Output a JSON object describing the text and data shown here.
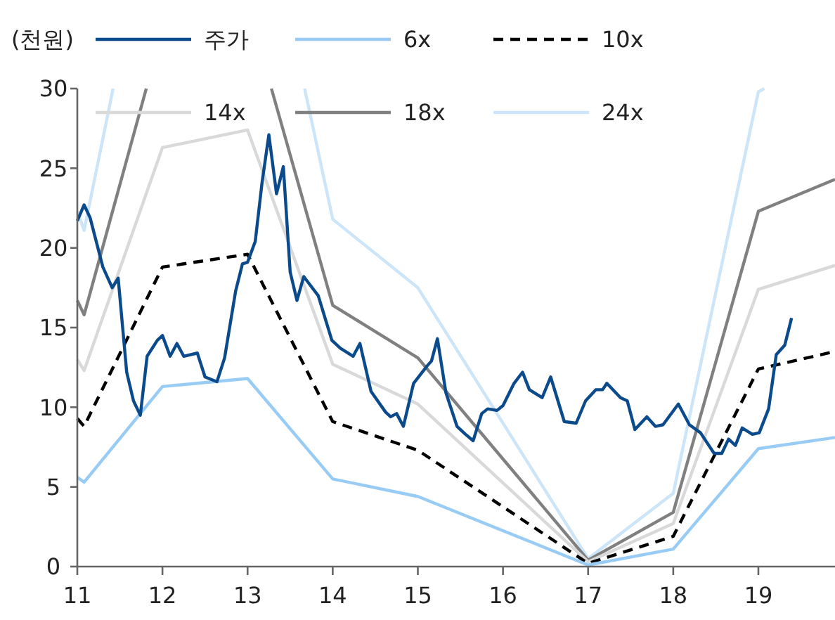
{
  "chart_data": {
    "type": "line",
    "ylabel": "(천원)",
    "xlim": [
      11,
      19.9
    ],
    "xticks": [
      11,
      12,
      13,
      14,
      15,
      16,
      17,
      18,
      19
    ],
    "ylim": [
      0,
      30
    ],
    "yticks": [
      0,
      5,
      10,
      15,
      20,
      25,
      30
    ],
    "grid": false,
    "legend": "top",
    "marker": "none",
    "series": [
      {
        "name": "주가",
        "color": "#0b4a8b",
        "x": [
          11.0,
          11.08,
          11.15,
          11.3,
          11.41,
          11.48,
          11.58,
          11.66,
          11.74,
          11.82,
          11.94,
          12.0,
          12.09,
          12.17,
          12.25,
          12.41,
          12.5,
          12.64,
          12.73,
          12.86,
          12.94,
          13.0,
          13.09,
          13.17,
          13.25,
          13.34,
          13.42,
          13.5,
          13.58,
          13.66,
          13.83,
          13.99,
          14.09,
          14.24,
          14.32,
          14.45,
          14.62,
          14.68,
          14.75,
          14.83,
          14.95,
          15.11,
          15.16,
          15.23,
          15.33,
          15.46,
          15.56,
          15.65,
          15.75,
          15.82,
          15.93,
          16.0,
          16.13,
          16.23,
          16.31,
          16.46,
          16.56,
          16.72,
          16.86,
          16.97,
          17.09,
          17.17,
          17.22,
          17.38,
          17.46,
          17.55,
          17.69,
          17.79,
          17.88,
          18.06,
          18.19,
          18.32,
          18.48,
          18.57,
          18.65,
          18.73,
          18.81,
          18.93,
          19.01,
          19.12,
          19.21,
          19.31,
          19.39
        ],
        "values": [
          21.7,
          22.7,
          21.9,
          18.8,
          17.5,
          18.1,
          12.2,
          10.4,
          9.5,
          13.2,
          14.2,
          14.5,
          13.2,
          14.0,
          13.2,
          13.4,
          11.9,
          11.6,
          13.1,
          17.3,
          19.0,
          19.1,
          20.4,
          24.1,
          27.1,
          23.4,
          25.1,
          18.5,
          16.7,
          18.2,
          17.0,
          14.2,
          13.7,
          13.2,
          14.0,
          11.0,
          9.7,
          9.4,
          9.6,
          8.8,
          11.5,
          12.6,
          12.9,
          14.3,
          10.9,
          8.8,
          8.3,
          7.9,
          9.6,
          9.9,
          9.8,
          10.1,
          11.5,
          12.2,
          11.1,
          10.6,
          11.9,
          9.1,
          9.0,
          10.4,
          11.1,
          11.1,
          11.5,
          10.6,
          10.4,
          8.6,
          9.4,
          8.8,
          8.9,
          10.2,
          8.9,
          8.4,
          7.1,
          7.1,
          8.0,
          7.6,
          8.7,
          8.3,
          8.4,
          9.9,
          13.3,
          13.9,
          15.6
        ]
      },
      {
        "name": "6x",
        "color": "#99ccf5",
        "x": [
          11,
          11.08,
          12,
          13,
          14,
          15,
          17,
          18,
          19,
          19.9
        ],
        "values": [
          5.6,
          5.3,
          11.3,
          11.8,
          5.5,
          4.4,
          0.1,
          1.1,
          7.4,
          8.1
        ]
      },
      {
        "name": "10x",
        "color": "#000000",
        "line_style": "dashed",
        "x": [
          11,
          11.08,
          12,
          13,
          14,
          15,
          17,
          18,
          19,
          19.9
        ],
        "values": [
          9.3,
          8.8,
          18.8,
          19.6,
          9.1,
          7.3,
          0.2,
          1.9,
          12.4,
          13.5
        ]
      },
      {
        "name": "14x",
        "color": "#d9d9d9",
        "x": [
          11,
          11.08,
          12,
          13,
          14,
          15,
          17,
          18,
          19,
          19.9
        ],
        "values": [
          13.0,
          12.3,
          26.3,
          27.4,
          12.7,
          10.2,
          0.3,
          2.7,
          17.4,
          18.9
        ]
      },
      {
        "name": "18x",
        "color": "#808080",
        "x": [
          11,
          11.08,
          11.81,
          12.5,
          13.28,
          14,
          15,
          17,
          18,
          19,
          19.9
        ],
        "values": [
          16.7,
          15.8,
          30,
          null,
          30,
          16.4,
          13.1,
          0.4,
          3.4,
          22.3,
          24.3
        ]
      },
      {
        "name": "24x",
        "color": "#cde5f9",
        "x": [
          11,
          11.08,
          11.42,
          12.5,
          13.67,
          14,
          15,
          17,
          18,
          19,
          19.07
        ],
        "values": [
          22.3,
          21.1,
          30,
          null,
          30,
          21.8,
          17.5,
          0.5,
          4.6,
          29.8,
          30
        ]
      }
    ]
  }
}
